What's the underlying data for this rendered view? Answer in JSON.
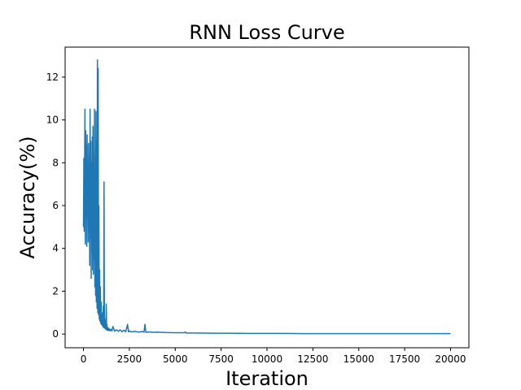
{
  "chart_data": {
    "type": "line",
    "title": "RNN Loss Curve",
    "xlabel": "Iteration",
    "ylabel": "Accuracy(%)",
    "xlim": [
      -1000,
      21000
    ],
    "ylim": [
      -0.64,
      13.4
    ],
    "x_ticks": [
      0,
      2500,
      5000,
      7500,
      10000,
      12500,
      15000,
      17500,
      20000
    ],
    "y_ticks": [
      0,
      2,
      4,
      6,
      8,
      10,
      12
    ],
    "grid": false,
    "legend": "none",
    "series": [
      {
        "color": "#1f77b4",
        "x": [
          0,
          20,
          40,
          60,
          80,
          100,
          120,
          140,
          160,
          180,
          200,
          220,
          240,
          260,
          280,
          300,
          320,
          340,
          360,
          380,
          400,
          420,
          440,
          460,
          480,
          500,
          520,
          540,
          560,
          580,
          600,
          620,
          640,
          660,
          680,
          700,
          720,
          740,
          760,
          780,
          800,
          820,
          840,
          860,
          880,
          900,
          920,
          940,
          960,
          980,
          1000,
          1020,
          1040,
          1060,
          1080,
          1100,
          1120,
          1140,
          1160,
          1180,
          1200,
          1220,
          1240,
          1260,
          1280,
          1300,
          1320,
          1340,
          1360,
          1380,
          1400,
          1450,
          1500,
          1550,
          1600,
          1700,
          1800,
          1900,
          2000,
          2100,
          2200,
          2300,
          2400,
          2450,
          2500,
          2600,
          2800,
          3000,
          3200,
          3300,
          3350,
          3400,
          3600,
          3800,
          4000,
          4500,
          5000,
          5500,
          5550,
          5600,
          6000,
          7000,
          8000,
          9000,
          10000,
          11000,
          12000,
          13000,
          14000,
          15000,
          16000,
          17000,
          18000,
          19000,
          20000
        ],
        "y": [
          5.0,
          8.2,
          4.8,
          7.5,
          10.5,
          4.2,
          9.5,
          5.5,
          8.8,
          4.1,
          9.3,
          6.0,
          7.8,
          4.3,
          8.9,
          5.2,
          7.0,
          3.2,
          10.5,
          4.5,
          9.0,
          2.6,
          8.0,
          3.8,
          9.2,
          3.0,
          9.7,
          2.8,
          8.3,
          3.5,
          10.5,
          2.2,
          7.6,
          1.8,
          10.4,
          1.5,
          9.0,
          1.2,
          12.8,
          1.0,
          12.4,
          0.9,
          6.0,
          0.7,
          3.0,
          0.6,
          2.2,
          0.5,
          1.5,
          0.45,
          1.0,
          0.4,
          0.8,
          0.35,
          1.3,
          0.3,
          7.1,
          0.3,
          0.7,
          0.25,
          0.6,
          0.22,
          1.4,
          0.2,
          0.45,
          0.18,
          0.3,
          0.17,
          0.28,
          0.16,
          0.25,
          0.15,
          0.22,
          0.14,
          0.35,
          0.13,
          0.2,
          0.12,
          0.2,
          0.11,
          0.18,
          0.11,
          0.45,
          0.1,
          0.15,
          0.1,
          0.13,
          0.09,
          0.12,
          0.09,
          0.45,
          0.08,
          0.1,
          0.08,
          0.09,
          0.07,
          0.06,
          0.06,
          0.1,
          0.05,
          0.05,
          0.04,
          0.04,
          0.03,
          0.03,
          0.03,
          0.02,
          0.02,
          0.02,
          0.02,
          0.02,
          0.02,
          0.02,
          0.02,
          0.02
        ]
      }
    ]
  }
}
